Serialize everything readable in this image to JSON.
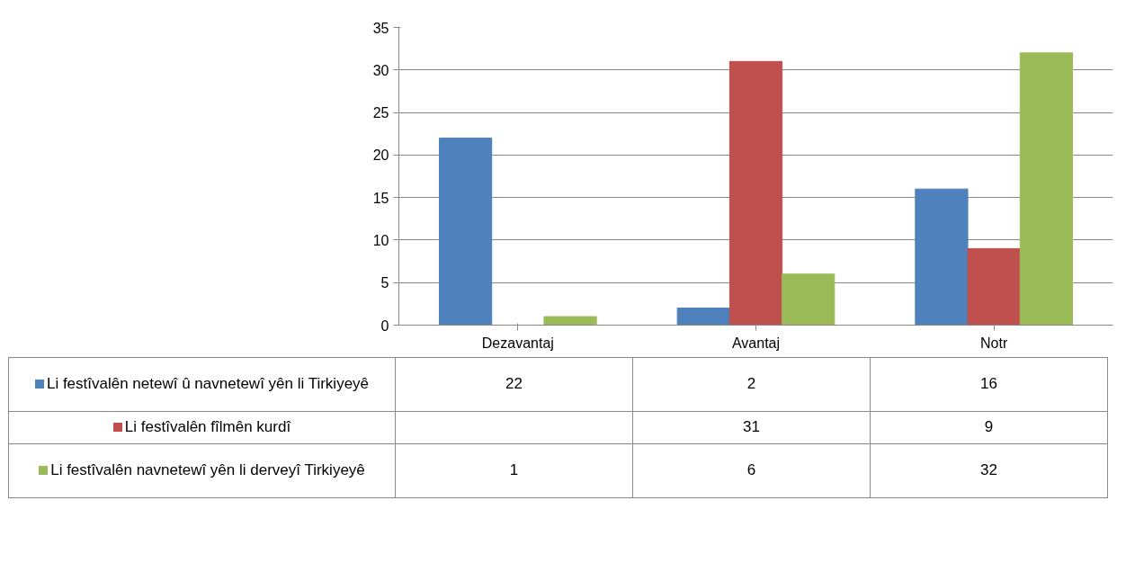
{
  "chart_data": {
    "type": "bar",
    "categories": [
      "Dezavantaj",
      "Avantaj",
      "Notr"
    ],
    "series": [
      {
        "name": "Li festîvalên netewî û navnetewî yên li Tirkiyeyê",
        "color": "#4f81bd",
        "values": [
          22,
          2,
          16
        ]
      },
      {
        "name": "Li festîvalên fîlmên kurdî",
        "color": "#c0504d",
        "values": [
          null,
          31,
          9
        ]
      },
      {
        "name": "Li festîvalên navnetewî yên li derveyî Tirkiyeyê",
        "color": "#9bbb59",
        "values": [
          1,
          6,
          32
        ]
      }
    ],
    "ylim": [
      0,
      35
    ],
    "yticks": [
      0,
      5,
      10,
      15,
      20,
      25,
      30,
      35
    ],
    "grid": "y",
    "legend": "bottom",
    "data_labels": true
  }
}
